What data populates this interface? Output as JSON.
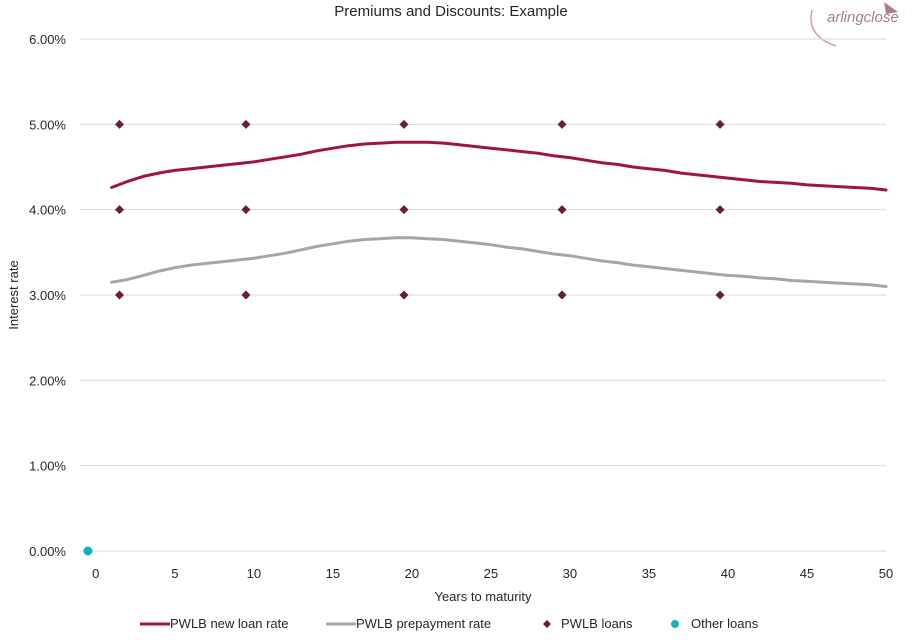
{
  "logo": {
    "text": "arlingclose"
  },
  "chart_data": {
    "type": "line",
    "title": "Premiums and Discounts: Example",
    "xlabel": "Years to maturity",
    "ylabel": "Interest rate",
    "xlim": [
      -1,
      50
    ],
    "ylim": [
      0,
      0.06
    ],
    "x_ticks": [
      0,
      5,
      10,
      15,
      20,
      25,
      30,
      35,
      40,
      45,
      50
    ],
    "x_tick_labels": [
      "0",
      "5",
      "10",
      "15",
      "20",
      "25",
      "30",
      "35",
      "40",
      "45",
      "50"
    ],
    "y_ticks": [
      0,
      0.01,
      0.02,
      0.03,
      0.04,
      0.05,
      0.06
    ],
    "y_tick_labels": [
      "0.00%",
      "1.00%",
      "2.00%",
      "3.00%",
      "4.00%",
      "5.00%",
      "6.00%"
    ],
    "grid": "horizontal",
    "legend_position": "bottom",
    "series": [
      {
        "name": "PWLB new loan rate",
        "kind": "line",
        "color": "#a0153e",
        "x": [
          1,
          2,
          3,
          4,
          5,
          6,
          7,
          8,
          9,
          10,
          11,
          12,
          13,
          14,
          15,
          16,
          17,
          18,
          19,
          20,
          21,
          22,
          23,
          24,
          25,
          26,
          27,
          28,
          29,
          30,
          31,
          32,
          33,
          34,
          35,
          36,
          37,
          38,
          39,
          40,
          41,
          42,
          43,
          44,
          45,
          46,
          47,
          48,
          49,
          50
        ],
        "y": [
          0.0426,
          0.0433,
          0.0439,
          0.0443,
          0.0446,
          0.0448,
          0.045,
          0.0452,
          0.0454,
          0.0456,
          0.0459,
          0.0462,
          0.0465,
          0.0469,
          0.0472,
          0.0475,
          0.0477,
          0.0478,
          0.0479,
          0.0479,
          0.0479,
          0.0478,
          0.0476,
          0.0474,
          0.0472,
          0.047,
          0.0468,
          0.0466,
          0.0463,
          0.0461,
          0.0458,
          0.0455,
          0.0453,
          0.045,
          0.0448,
          0.0446,
          0.0443,
          0.0441,
          0.0439,
          0.0437,
          0.0435,
          0.0433,
          0.0432,
          0.0431,
          0.0429,
          0.0428,
          0.0427,
          0.0426,
          0.0425,
          0.0423
        ]
      },
      {
        "name": "PWLB prepayment rate",
        "kind": "line",
        "color": "#a6a6a6",
        "x": [
          1,
          2,
          3,
          4,
          5,
          6,
          7,
          8,
          9,
          10,
          11,
          12,
          13,
          14,
          15,
          16,
          17,
          18,
          19,
          20,
          21,
          22,
          23,
          24,
          25,
          26,
          27,
          28,
          29,
          30,
          31,
          32,
          33,
          34,
          35,
          36,
          37,
          38,
          39,
          40,
          41,
          42,
          43,
          44,
          45,
          46,
          47,
          48,
          49,
          50
        ],
        "y": [
          0.0315,
          0.0318,
          0.0323,
          0.0328,
          0.0332,
          0.0335,
          0.0337,
          0.0339,
          0.0341,
          0.0343,
          0.0346,
          0.0349,
          0.0353,
          0.0357,
          0.036,
          0.0363,
          0.0365,
          0.0366,
          0.0367,
          0.0367,
          0.0366,
          0.0365,
          0.0363,
          0.0361,
          0.0359,
          0.0356,
          0.0354,
          0.0351,
          0.0348,
          0.0346,
          0.0343,
          0.034,
          0.0338,
          0.0335,
          0.0333,
          0.0331,
          0.0329,
          0.0327,
          0.0325,
          0.0323,
          0.0322,
          0.032,
          0.0319,
          0.0317,
          0.0316,
          0.0315,
          0.0314,
          0.0313,
          0.0312,
          0.031
        ]
      },
      {
        "name": "PWLB loans",
        "kind": "scatter",
        "marker": "diamond",
        "color": "#6b1f2e",
        "x": [
          1.5,
          1.5,
          1.5,
          9.5,
          9.5,
          9.5,
          19.5,
          19.5,
          19.5,
          29.5,
          29.5,
          29.5,
          39.5,
          39.5,
          39.5
        ],
        "y": [
          0.05,
          0.04,
          0.03,
          0.05,
          0.04,
          0.03,
          0.05,
          0.04,
          0.03,
          0.05,
          0.04,
          0.03,
          0.05,
          0.04,
          0.03
        ]
      },
      {
        "name": "Other loans",
        "kind": "scatter",
        "marker": "circle",
        "color": "#17b3b8",
        "x": [
          -0.5
        ],
        "y": [
          0
        ]
      }
    ]
  }
}
